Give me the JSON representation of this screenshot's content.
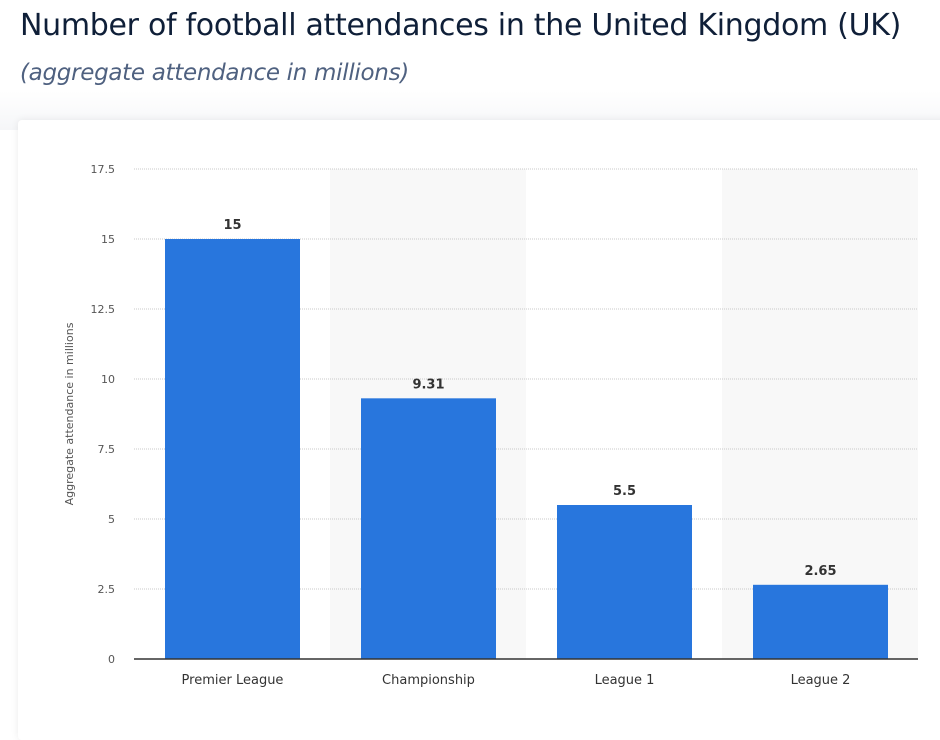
{
  "header": {
    "title": "Number of football attendances in the United Kingdom (UK)",
    "subtitle": "(aggregate attendance in millions)"
  },
  "chart_data": {
    "type": "bar",
    "categories": [
      "Premier League",
      "Championship",
      "League 1",
      "League 2"
    ],
    "values": [
      15,
      9.31,
      5.5,
      2.65
    ],
    "value_labels": [
      "15",
      "9.31",
      "5.5",
      "2.65"
    ],
    "xlabel": "",
    "ylabel": "Aggregate attendance in millions",
    "ylim": [
      0,
      17.5
    ],
    "yticks": [
      "0",
      "2.5",
      "5",
      "7.5",
      "10",
      "12.5",
      "15",
      "17.5"
    ],
    "grid": true,
    "bar_color": "#2876dd"
  }
}
